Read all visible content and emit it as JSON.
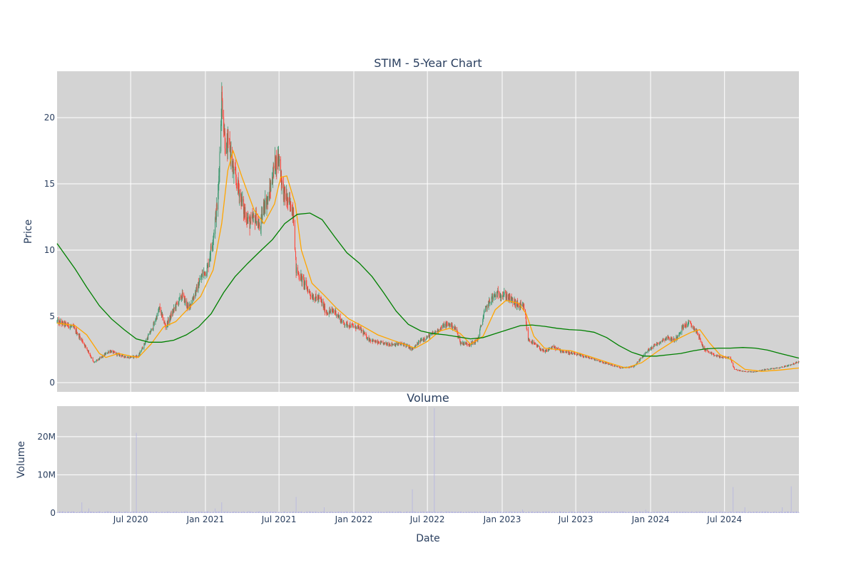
{
  "chart_data": [
    {
      "type": "candlestick",
      "title": "STIM - 5-Year Chart",
      "ylabel": "Price",
      "xlabel": "",
      "x_range": [
        "2020-01-02",
        "2024-12-31"
      ],
      "ylim": [
        -0.7,
        23.5
      ],
      "y_ticks": [
        0,
        5,
        10,
        15,
        20
      ],
      "grid": true,
      "colors": {
        "background": "#d3d3d3",
        "up": "#3d9970",
        "down": "#ff4136",
        "ma_short": "#ffa500",
        "ma_long": "#008000"
      },
      "price_anchors": [
        [
          "2020-01-02",
          4.6
        ],
        [
          "2020-02-10",
          4.2
        ],
        [
          "2020-03-01",
          3.3
        ],
        [
          "2020-03-20",
          2.3
        ],
        [
          "2020-04-01",
          1.5
        ],
        [
          "2020-04-20",
          1.9
        ],
        [
          "2020-05-10",
          2.4
        ],
        [
          "2020-06-01",
          2.1
        ],
        [
          "2020-06-25",
          1.9
        ],
        [
          "2020-07-20",
          2.0
        ],
        [
          "2020-08-05",
          3.0
        ],
        [
          "2020-08-25",
          4.2
        ],
        [
          "2020-09-10",
          5.6
        ],
        [
          "2020-09-25",
          4.2
        ],
        [
          "2020-10-20",
          5.8
        ],
        [
          "2020-11-05",
          6.6
        ],
        [
          "2020-11-20",
          5.6
        ],
        [
          "2020-12-10",
          7.0
        ],
        [
          "2020-12-25",
          8.2
        ],
        [
          "2021-01-05",
          8.5
        ],
        [
          "2021-01-20",
          11.0
        ],
        [
          "2021-02-01",
          14.0
        ],
        [
          "2021-02-10",
          21.5
        ],
        [
          "2021-02-20",
          17.5
        ],
        [
          "2021-03-01",
          18.0
        ],
        [
          "2021-03-10",
          16.0
        ],
        [
          "2021-03-25",
          14.5
        ],
        [
          "2021-04-05",
          13.0
        ],
        [
          "2021-04-20",
          12.0
        ],
        [
          "2021-05-05",
          12.5
        ],
        [
          "2021-05-15",
          11.5
        ],
        [
          "2021-05-25",
          13.5
        ],
        [
          "2021-06-05",
          13.8
        ],
        [
          "2021-06-20",
          16.5
        ],
        [
          "2021-07-01",
          17.0
        ],
        [
          "2021-07-10",
          14.5
        ],
        [
          "2021-07-25",
          13.5
        ],
        [
          "2021-08-05",
          13.0
        ],
        [
          "2021-08-12",
          8.5
        ],
        [
          "2021-09-01",
          7.5
        ],
        [
          "2021-09-20",
          6.5
        ],
        [
          "2021-10-10",
          6.3
        ],
        [
          "2021-10-25",
          5.3
        ],
        [
          "2021-11-15",
          5.4
        ],
        [
          "2021-12-05",
          4.5
        ],
        [
          "2021-12-25",
          4.3
        ],
        [
          "2022-01-15",
          4.1
        ],
        [
          "2022-02-05",
          3.3
        ],
        [
          "2022-03-01",
          3.0
        ],
        [
          "2022-04-01",
          2.9
        ],
        [
          "2022-05-05",
          2.9
        ],
        [
          "2022-05-25",
          2.5
        ],
        [
          "2022-06-15",
          3.2
        ],
        [
          "2022-07-05",
          3.5
        ],
        [
          "2022-07-25",
          3.9
        ],
        [
          "2022-08-10",
          4.3
        ],
        [
          "2022-08-25",
          4.4
        ],
        [
          "2022-09-10",
          4.0
        ],
        [
          "2022-09-20",
          3.0
        ],
        [
          "2022-10-15",
          2.9
        ],
        [
          "2022-11-01",
          3.2
        ],
        [
          "2022-11-20",
          5.5
        ],
        [
          "2022-12-05",
          6.3
        ],
        [
          "2022-12-20",
          6.7
        ],
        [
          "2023-01-10",
          6.6
        ],
        [
          "2023-02-05",
          5.9
        ],
        [
          "2023-02-25",
          5.6
        ],
        [
          "2023-03-05",
          3.3
        ],
        [
          "2023-03-25",
          2.8
        ],
        [
          "2023-04-15",
          2.3
        ],
        [
          "2023-05-05",
          2.7
        ],
        [
          "2023-05-25",
          2.4
        ],
        [
          "2023-06-20",
          2.2
        ],
        [
          "2023-07-20",
          2.0
        ],
        [
          "2023-08-20",
          1.7
        ],
        [
          "2023-09-20",
          1.4
        ],
        [
          "2023-10-20",
          1.1
        ],
        [
          "2023-11-20",
          1.2
        ],
        [
          "2023-12-10",
          1.9
        ],
        [
          "2023-12-31",
          2.6
        ],
        [
          "2024-01-20",
          3.0
        ],
        [
          "2024-02-10",
          3.4
        ],
        [
          "2024-03-01",
          3.2
        ],
        [
          "2024-03-20",
          4.2
        ],
        [
          "2024-04-05",
          4.5
        ],
        [
          "2024-04-25",
          3.8
        ],
        [
          "2024-05-10",
          2.6
        ],
        [
          "2024-06-01",
          2.1
        ],
        [
          "2024-06-25",
          1.9
        ],
        [
          "2024-07-15",
          1.9
        ],
        [
          "2024-07-25",
          1.0
        ],
        [
          "2024-08-15",
          0.85
        ],
        [
          "2024-09-10",
          0.8
        ],
        [
          "2024-10-10",
          1.0
        ],
        [
          "2024-11-10",
          1.1
        ],
        [
          "2024-12-05",
          1.3
        ],
        [
          "2024-12-31",
          1.55
        ]
      ],
      "series": [
        {
          "type": "line",
          "color": "#ffa500",
          "points": [
            [
              "2020-01-02",
              4.5
            ],
            [
              "2020-02-15",
              4.3
            ],
            [
              "2020-03-15",
              3.6
            ],
            [
              "2020-04-15",
              2.2
            ],
            [
              "2020-05-01",
              1.9
            ],
            [
              "2020-06-01",
              2.2
            ],
            [
              "2020-07-01",
              2.0
            ],
            [
              "2020-07-20",
              1.9
            ],
            [
              "2020-08-20",
              2.9
            ],
            [
              "2020-09-20",
              4.2
            ],
            [
              "2020-10-20",
              4.6
            ],
            [
              "2020-11-20",
              5.6
            ],
            [
              "2020-12-20",
              6.5
            ],
            [
              "2021-01-20",
              8.5
            ],
            [
              "2021-02-10",
              12.0
            ],
            [
              "2021-02-25",
              16.0
            ],
            [
              "2021-03-10",
              17.5
            ],
            [
              "2021-04-01",
              15.5
            ],
            [
              "2021-05-01",
              13.0
            ],
            [
              "2021-05-25",
              12.0
            ],
            [
              "2021-06-20",
              13.5
            ],
            [
              "2021-07-05",
              15.5
            ],
            [
              "2021-07-20",
              15.6
            ],
            [
              "2021-08-10",
              13.5
            ],
            [
              "2021-08-25",
              10.0
            ],
            [
              "2021-09-20",
              7.5
            ],
            [
              "2021-10-20",
              6.6
            ],
            [
              "2021-11-20",
              5.6
            ],
            [
              "2021-12-20",
              4.8
            ],
            [
              "2022-01-20",
              4.3
            ],
            [
              "2022-03-01",
              3.6
            ],
            [
              "2022-04-15",
              3.1
            ],
            [
              "2022-06-01",
              2.6
            ],
            [
              "2022-07-01",
              3.1
            ],
            [
              "2022-08-01",
              3.9
            ],
            [
              "2022-08-25",
              4.1
            ],
            [
              "2022-09-20",
              3.7
            ],
            [
              "2022-10-15",
              2.9
            ],
            [
              "2022-11-15",
              3.5
            ],
            [
              "2022-12-15",
              5.5
            ],
            [
              "2023-01-10",
              6.2
            ],
            [
              "2023-02-10",
              6.0
            ],
            [
              "2023-03-01",
              5.2
            ],
            [
              "2023-03-20",
              3.5
            ],
            [
              "2023-04-15",
              2.6
            ],
            [
              "2023-05-15",
              2.5
            ],
            [
              "2023-06-20",
              2.4
            ],
            [
              "2023-08-01",
              2.0
            ],
            [
              "2023-09-20",
              1.5
            ],
            [
              "2023-11-01",
              1.1
            ],
            [
              "2023-12-10",
              1.5
            ],
            [
              "2024-01-20",
              2.4
            ],
            [
              "2024-03-01",
              3.2
            ],
            [
              "2024-04-10",
              3.8
            ],
            [
              "2024-05-01",
              4.0
            ],
            [
              "2024-05-25",
              3.0
            ],
            [
              "2024-06-20",
              2.1
            ],
            [
              "2024-07-20",
              1.7
            ],
            [
              "2024-08-20",
              1.0
            ],
            [
              "2024-10-01",
              0.85
            ],
            [
              "2024-11-15",
              0.95
            ],
            [
              "2024-12-31",
              1.1
            ]
          ]
        },
        {
          "type": "line",
          "color": "#008000",
          "points": [
            [
              "2020-01-02",
              10.5
            ],
            [
              "2020-02-15",
              8.6
            ],
            [
              "2020-03-15",
              7.2
            ],
            [
              "2020-04-15",
              5.8
            ],
            [
              "2020-05-15",
              4.8
            ],
            [
              "2020-06-15",
              4.0
            ],
            [
              "2020-07-15",
              3.3
            ],
            [
              "2020-08-15",
              3.05
            ],
            [
              "2020-09-15",
              3.05
            ],
            [
              "2020-10-15",
              3.2
            ],
            [
              "2020-11-15",
              3.6
            ],
            [
              "2020-12-15",
              4.2
            ],
            [
              "2021-01-15",
              5.2
            ],
            [
              "2021-02-15",
              6.8
            ],
            [
              "2021-03-15",
              8.0
            ],
            [
              "2021-04-15",
              9.0
            ],
            [
              "2021-05-15",
              9.9
            ],
            [
              "2021-06-15",
              10.8
            ],
            [
              "2021-07-15",
              12.0
            ],
            [
              "2021-08-15",
              12.7
            ],
            [
              "2021-09-15",
              12.8
            ],
            [
              "2021-10-15",
              12.3
            ],
            [
              "2021-11-15",
              11.0
            ],
            [
              "2021-12-15",
              9.8
            ],
            [
              "2022-01-15",
              9.0
            ],
            [
              "2022-02-15",
              8.0
            ],
            [
              "2022-03-15",
              6.8
            ],
            [
              "2022-04-15",
              5.4
            ],
            [
              "2022-05-15",
              4.4
            ],
            [
              "2022-06-15",
              3.9
            ],
            [
              "2022-07-15",
              3.7
            ],
            [
              "2022-08-15",
              3.6
            ],
            [
              "2022-09-15",
              3.45
            ],
            [
              "2022-10-15",
              3.3
            ],
            [
              "2022-11-15",
              3.4
            ],
            [
              "2022-12-15",
              3.7
            ],
            [
              "2023-01-15",
              4.0
            ],
            [
              "2023-02-15",
              4.3
            ],
            [
              "2023-03-15",
              4.35
            ],
            [
              "2023-04-15",
              4.25
            ],
            [
              "2023-05-15",
              4.1
            ],
            [
              "2023-06-15",
              4.0
            ],
            [
              "2023-07-15",
              3.95
            ],
            [
              "2023-08-15",
              3.8
            ],
            [
              "2023-09-15",
              3.4
            ],
            [
              "2023-10-15",
              2.8
            ],
            [
              "2023-11-15",
              2.3
            ],
            [
              "2023-12-15",
              2.0
            ],
            [
              "2024-01-15",
              2.0
            ],
            [
              "2024-02-15",
              2.1
            ],
            [
              "2024-03-15",
              2.2
            ],
            [
              "2024-04-15",
              2.4
            ],
            [
              "2024-05-15",
              2.55
            ],
            [
              "2024-06-15",
              2.6
            ],
            [
              "2024-07-15",
              2.6
            ],
            [
              "2024-08-15",
              2.65
            ],
            [
              "2024-09-15",
              2.6
            ],
            [
              "2024-10-15",
              2.45
            ],
            [
              "2024-11-15",
              2.2
            ],
            [
              "2024-12-31",
              1.85
            ]
          ]
        }
      ]
    },
    {
      "type": "bar",
      "title": "Volume",
      "xlabel": "Date",
      "ylabel": "Volume",
      "ylim": [
        0,
        28000000
      ],
      "y_ticks": [
        0,
        10000000,
        20000000
      ],
      "y_tick_labels": [
        "0",
        "10M",
        "20M"
      ],
      "x_ticks": [
        "2020-07-01",
        "2021-01-01",
        "2021-07-01",
        "2022-01-01",
        "2022-07-01",
        "2023-01-01",
        "2023-07-01",
        "2024-01-01",
        "2024-07-01"
      ],
      "x_tick_labels": [
        "Jul 2020",
        "Jan 2021",
        "Jul 2021",
        "Jan 2022",
        "Jul 2022",
        "Jan 2023",
        "Jul 2023",
        "Jan 2024",
        "Jul 2024"
      ],
      "colors": {
        "background": "#d3d3d3",
        "bar": "#b8b8e0"
      },
      "baseline": 300000,
      "spikes": [
        [
          "2020-03-03",
          2800000
        ],
        [
          "2020-03-20",
          1200000
        ],
        [
          "2020-06-20",
          18000000
        ],
        [
          "2020-07-15",
          21000000
        ],
        [
          "2021-01-25",
          1200000
        ],
        [
          "2021-02-10",
          2800000
        ],
        [
          "2021-04-25",
          1500000
        ],
        [
          "2021-05-15",
          5500000
        ],
        [
          "2021-06-20",
          3200000
        ],
        [
          "2021-08-12",
          4200000
        ],
        [
          "2021-10-20",
          1500000
        ],
        [
          "2022-05-25",
          6200000
        ],
        [
          "2022-06-25",
          2000000
        ],
        [
          "2022-07-18",
          27500000
        ],
        [
          "2022-11-20",
          1200000
        ],
        [
          "2023-02-20",
          900000
        ],
        [
          "2023-12-20",
          900000
        ],
        [
          "2024-07-22",
          6800000
        ],
        [
          "2024-08-20",
          1500000
        ],
        [
          "2024-11-20",
          1500000
        ],
        [
          "2024-12-12",
          7000000
        ]
      ]
    }
  ]
}
